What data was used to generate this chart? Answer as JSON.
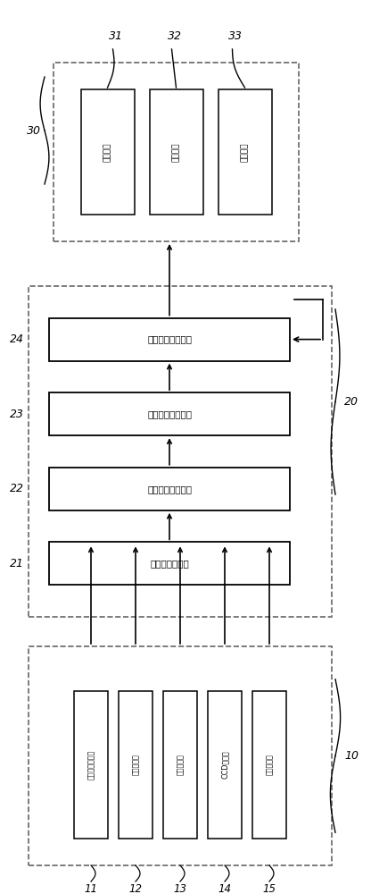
{
  "bg_color": "#ffffff",
  "line_color": "#000000",
  "dashed_color": "#666666",
  "sensors": [
    "心率呼吸传感器",
    "脉搏传感器",
    "握力传感器",
    "CCD传感器",
    "车速传感器"
  ],
  "sensor_ids": [
    "11",
    "12",
    "13",
    "14",
    "15"
  ],
  "proc_units": [
    {
      "label": "信号预处理单元",
      "id": "21"
    },
    {
      "label": "疲劳特征提取单元",
      "id": "22"
    },
    {
      "label": "疲劳特征处理单元",
      "id": "23"
    },
    {
      "label": "疲劳等级判定单元",
      "id": "24"
    }
  ],
  "output_units": [
    "发声单元",
    "发光单元",
    "刹车单元"
  ],
  "output_ids": [
    "31",
    "32",
    "33"
  ],
  "group_ids": [
    "10",
    "20",
    "30"
  ]
}
